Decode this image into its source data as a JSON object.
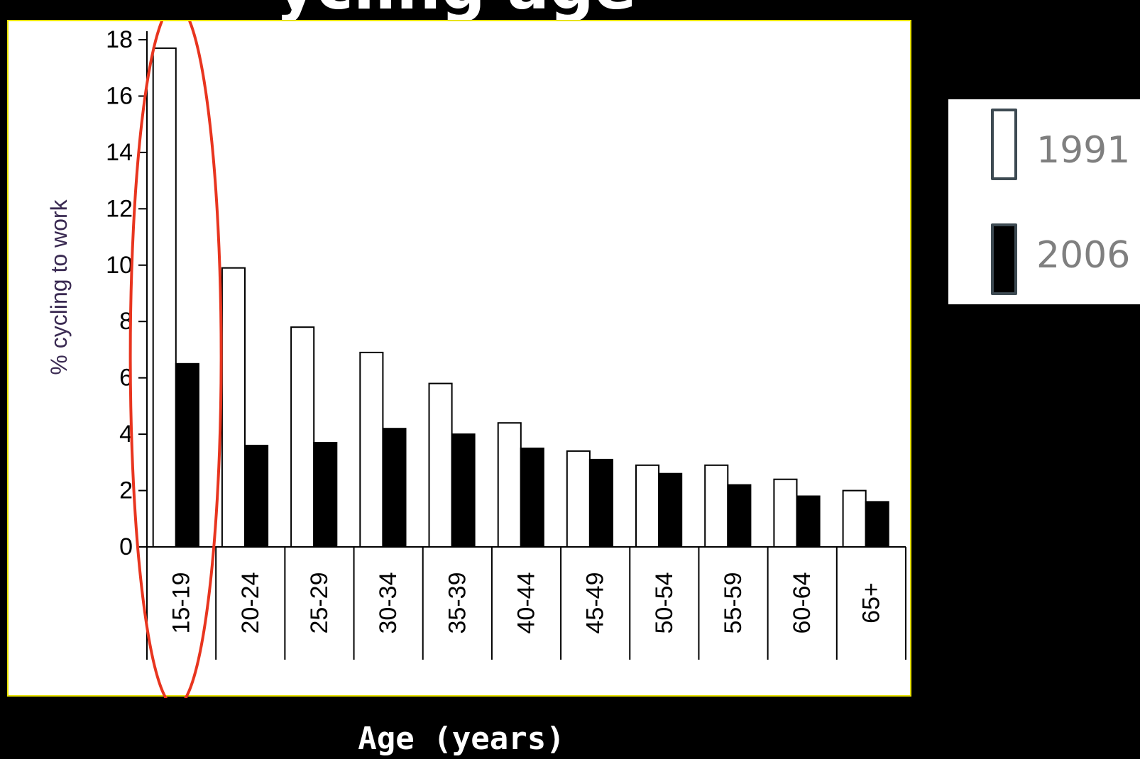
{
  "slide": {
    "title": "ycling age"
  },
  "chart_data": {
    "type": "bar",
    "ylabel": "% cycling to work",
    "xlabel": "Age (years)",
    "ylim": [
      0,
      18
    ],
    "yticks": [
      "0",
      "2",
      "4",
      "6",
      "8",
      "10",
      "12",
      "14",
      "16",
      "18"
    ],
    "categories": [
      "15-19",
      "20-24",
      "25-29",
      "30-34",
      "35-39",
      "40-44",
      "45-49",
      "50-54",
      "55-59",
      "60-64",
      "65+"
    ],
    "series": [
      {
        "name": "1991",
        "color": "#ffffff",
        "values": [
          17.7,
          9.9,
          7.8,
          6.9,
          5.8,
          4.4,
          3.4,
          2.9,
          2.9,
          2.4,
          2.0
        ]
      },
      {
        "name": "2006",
        "color": "#000000",
        "values": [
          6.5,
          3.6,
          3.7,
          4.2,
          4.0,
          3.5,
          3.1,
          2.6,
          2.2,
          1.8,
          1.6
        ]
      }
    ],
    "legend_position": "right, outside the plot",
    "highlight": {
      "category": "15-19",
      "shape": "ellipse",
      "color": "#e8351f"
    }
  }
}
